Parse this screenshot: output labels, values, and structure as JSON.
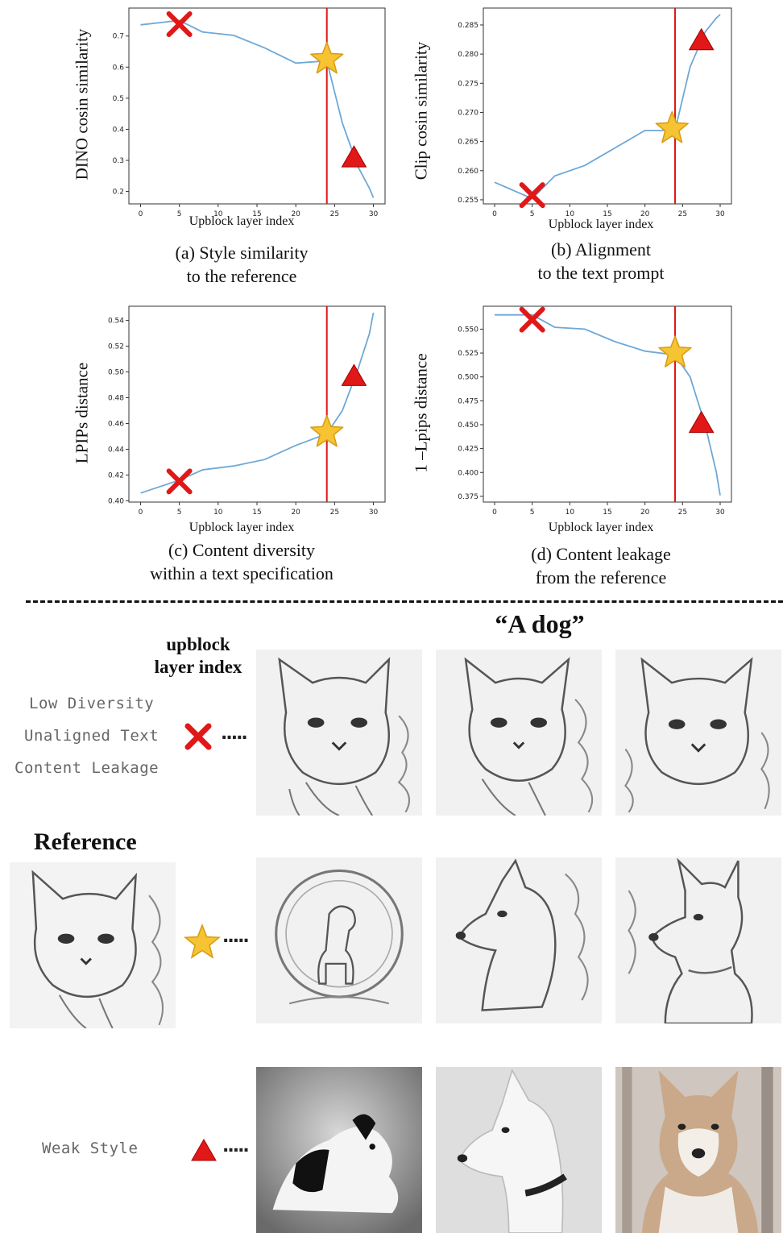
{
  "chart_data": [
    {
      "id": "a",
      "type": "line",
      "ylabel": "DINO cosin similarity",
      "xlabel": "Upblock layer index",
      "caption": [
        "(a) Style similarity",
        "to the reference"
      ],
      "x": [
        0,
        5,
        8,
        12,
        16,
        20,
        24,
        26,
        28,
        29.5,
        30
      ],
      "y": [
        0.736,
        0.75,
        0.713,
        0.702,
        0.662,
        0.613,
        0.62,
        0.42,
        0.28,
        0.21,
        0.18
      ],
      "xlim": [
        -1.5,
        31.5
      ],
      "ylim": [
        0.16,
        0.79
      ],
      "xticks": [
        0,
        5,
        10,
        15,
        20,
        25,
        30
      ],
      "yticks": [
        0.2,
        0.3,
        0.4,
        0.5,
        0.6,
        0.7
      ],
      "ytick_labels": [
        "0.2",
        "0.3",
        "0.4",
        "0.5",
        "0.6",
        "0.7"
      ],
      "vline_x": 24,
      "markers": {
        "cross": [
          5,
          0.738
        ],
        "star": [
          24,
          0.625
        ],
        "triangle": [
          27.5,
          0.31
        ]
      }
    },
    {
      "id": "b",
      "type": "line",
      "ylabel": "Clip cosin similarity",
      "xlabel": "Upblock layer index",
      "caption": [
        "(b) Alignment",
        "to the text prompt"
      ],
      "x": [
        0,
        5,
        8,
        12,
        16,
        20,
        24,
        26,
        28,
        29.5,
        30
      ],
      "y": [
        0.258,
        0.2552,
        0.2591,
        0.2609,
        0.2639,
        0.2669,
        0.2669,
        0.2778,
        0.2838,
        0.2862,
        0.2868
      ],
      "xlim": [
        -1.5,
        31.5
      ],
      "ylim": [
        0.2543,
        0.2879
      ],
      "xticks": [
        0,
        5,
        10,
        15,
        20,
        25,
        30
      ],
      "yticks": [
        0.255,
        0.26,
        0.265,
        0.27,
        0.275,
        0.28,
        0.285
      ],
      "ytick_labels": [
        "0.255",
        "0.260",
        "0.265",
        "0.270",
        "0.275",
        "0.280",
        "0.285"
      ],
      "vline_x": 24,
      "markers": {
        "cross": [
          5,
          0.2558
        ],
        "star": [
          23.6,
          0.2672
        ],
        "triangle": [
          27.5,
          0.2824
        ]
      }
    },
    {
      "id": "c",
      "type": "line",
      "ylabel": "LPIPs distance",
      "xlabel": "Upblock layer index",
      "caption": [
        "(c) Content diversity",
        "within a text specification"
      ],
      "x": [
        0,
        5,
        8,
        12,
        16,
        20,
        24,
        26,
        28,
        29.5,
        30
      ],
      "y": [
        0.406,
        0.416,
        0.424,
        0.427,
        0.432,
        0.443,
        0.452,
        0.47,
        0.502,
        0.53,
        0.546
      ],
      "xlim": [
        -1.5,
        31.5
      ],
      "ylim": [
        0.399,
        0.551
      ],
      "xticks": [
        0,
        5,
        10,
        15,
        20,
        25,
        30
      ],
      "yticks": [
        0.4,
        0.42,
        0.44,
        0.46,
        0.48,
        0.5,
        0.52,
        0.54
      ],
      "ytick_labels": [
        "0.40",
        "0.42",
        "0.44",
        "0.46",
        "0.48",
        "0.50",
        "0.52",
        "0.54"
      ],
      "vline_x": 24,
      "markers": {
        "cross": [
          5,
          0.415
        ],
        "star": [
          24,
          0.453
        ],
        "triangle": [
          27.5,
          0.497
        ]
      }
    },
    {
      "id": "d",
      "type": "line",
      "ylabel": "1 –Lpips distance",
      "xlabel": "Upblock layer index",
      "caption": [
        "(d) Content leakage",
        "from the reference"
      ],
      "x": [
        0,
        5,
        8,
        12,
        16,
        20,
        24,
        26,
        28,
        29.5,
        30
      ],
      "y": [
        0.565,
        0.565,
        0.552,
        0.55,
        0.537,
        0.527,
        0.523,
        0.5,
        0.45,
        0.4,
        0.376
      ],
      "xlim": [
        -1.5,
        31.5
      ],
      "ylim": [
        0.369,
        0.574
      ],
      "xticks": [
        0,
        5,
        10,
        15,
        20,
        25,
        30
      ],
      "yticks": [
        0.375,
        0.4,
        0.425,
        0.45,
        0.475,
        0.5,
        0.525,
        0.55
      ],
      "ytick_labels": [
        "0.375",
        "0.400",
        "0.425",
        "0.450",
        "0.475",
        "0.500",
        "0.525",
        "0.550"
      ],
      "vline_x": 24,
      "markers": {
        "cross": [
          5,
          0.56
        ],
        "star": [
          24,
          0.525
        ],
        "triangle": [
          27.5,
          0.452
        ]
      }
    }
  ],
  "colors": {
    "line": "#6fa8d6",
    "vline": "#e01818",
    "cross": "#e01818",
    "triangle": "#e01818",
    "star": "#f6c432",
    "axis": "#333333"
  },
  "gallery": {
    "prompt_title": "“A dog”",
    "upblock_label": [
      "upblock",
      "layer index"
    ],
    "reference_label": "Reference",
    "cross_row_notes": [
      "Low Diversity",
      "Unaligned Text",
      "Content Leakage"
    ],
    "triangle_row_note": "Weak Style",
    "dots": "....."
  }
}
